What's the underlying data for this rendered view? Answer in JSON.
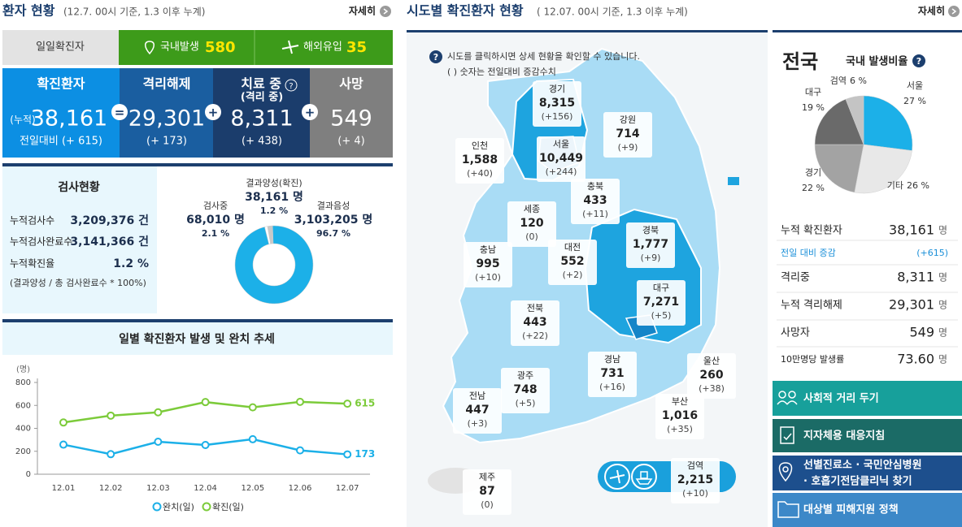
{
  "patients": {
    "title": "환자 현황",
    "subtitle": "(12.7. 00시 기준, 1.3 이후 누계)",
    "more": "자세히",
    "daily": {
      "label": "일일확진자",
      "domestic_label": "국내발생",
      "domestic": "580",
      "overseas_label": "해외유입",
      "overseas": "35"
    },
    "operators": [
      "=",
      "+",
      "+"
    ],
    "cards": [
      {
        "title": "확진환자",
        "prefix": "(누적)",
        "value": "38,161",
        "change": "전일대비 (+ 615)"
      },
      {
        "title": "격리해제",
        "value": "29,301",
        "change": "(+ 173)"
      },
      {
        "title": "치료 중",
        "help": "?",
        "subtitle": "(격리 중)",
        "value": "8,311",
        "change": "(+ 438)"
      },
      {
        "title": "사망",
        "value": "549",
        "change": "(+ 4)"
      }
    ]
  },
  "tests": {
    "title": "검사현황",
    "rows": [
      [
        "누적검사수",
        "3,209,376 건"
      ],
      [
        "누적검사완료수",
        "3,141,366 건"
      ],
      [
        "누적확진율",
        "1.2 %"
      ]
    ],
    "note": "(결과양성 / 총 검사완료수 * 100%)",
    "donut": {
      "type": "pie",
      "categories": [
        "결과양성(확진)",
        "검사중",
        "결과음성"
      ],
      "counts": [
        "38,161 명",
        "68,010 명",
        "3,103,205 명"
      ],
      "values": [
        1.2,
        2.1,
        96.7
      ],
      "value_labels": [
        "1.2 %",
        "2.1 %",
        "96.7 %"
      ],
      "colors": [
        "#ffffff",
        "#c9c9c9",
        "#1cb0e8"
      ]
    }
  },
  "trend": {
    "type": "line",
    "title": "일별 확진환자 발생 및 완치 추세",
    "y_unit": "(명)",
    "categories": [
      "12.01",
      "12.02",
      "12.03",
      "12.04",
      "12.05",
      "12.06",
      "12.07"
    ],
    "series": [
      {
        "name": "완치(일)",
        "color": "#1cb0e8",
        "values": [
          258,
          175,
          283,
          255,
          305,
          208,
          173
        ]
      },
      {
        "name": "확진(일)",
        "color": "#7ccb3a",
        "values": [
          451,
          511,
          540,
          629,
          583,
          631,
          615
        ]
      }
    ],
    "ylim": [
      0,
      800
    ],
    "yticks": [
      0,
      200,
      400,
      600,
      800
    ]
  },
  "map": {
    "title": "시도별 확진환자 현황",
    "subtitle": "( 12.07. 00시 기준, 1.3 이후 누계)",
    "more": "자세히",
    "help": "?",
    "notes": [
      "시도를 클릭하시면 상세 현황을 확인할 수 있습니다.",
      "( ) 숫자는 전일대비 증감수치"
    ],
    "regions": [
      {
        "name": "경기",
        "value": "8,315",
        "change": "(+156)"
      },
      {
        "name": "강원",
        "value": "714",
        "change": "(+9)"
      },
      {
        "name": "인천",
        "value": "1,588",
        "change": "(+40)"
      },
      {
        "name": "서울",
        "value": "10,449",
        "change": "(+244)"
      },
      {
        "name": "충북",
        "value": "433",
        "change": "(+11)"
      },
      {
        "name": "세종",
        "value": "120",
        "change": "(0)"
      },
      {
        "name": "충남",
        "value": "995",
        "change": "(+10)"
      },
      {
        "name": "대전",
        "value": "552",
        "change": "(+2)"
      },
      {
        "name": "경북",
        "value": "1,777",
        "change": "(+9)"
      },
      {
        "name": "대구",
        "value": "7,271",
        "change": "(+5)"
      },
      {
        "name": "전북",
        "value": "443",
        "change": "(+22)"
      },
      {
        "name": "경남",
        "value": "731",
        "change": "(+16)"
      },
      {
        "name": "광주",
        "value": "748",
        "change": "(+5)"
      },
      {
        "name": "울산",
        "value": "260",
        "change": "(+38)"
      },
      {
        "name": "전남",
        "value": "447",
        "change": "(+3)"
      },
      {
        "name": "부산",
        "value": "1,016",
        "change": "(+35)"
      },
      {
        "name": "검역",
        "value": "2,215",
        "change": "(+10)"
      },
      {
        "name": "제주",
        "value": "87",
        "change": "(0)"
      }
    ]
  },
  "nation": {
    "title": "전국",
    "ratio_title": "국내 발생비율",
    "help": "?",
    "pie": {
      "type": "pie",
      "categories": [
        "서울",
        "기타",
        "경기",
        "대구",
        "검역"
      ],
      "values": [
        27,
        26,
        22,
        19,
        6
      ],
      "value_labels": [
        "27 %",
        "26 %",
        "22 %",
        "19 %",
        "6 %"
      ],
      "colors": [
        "#1cb0e8",
        "#e8e8e8",
        "#a3a3a3",
        "#6a6a6a",
        "#c4c4c4"
      ]
    },
    "stats": [
      {
        "label": "누적 확진환자",
        "value": "38,161",
        "unit": "명"
      },
      {
        "label": "전일 대비 증감",
        "value": "(+615)"
      },
      {
        "label": "격리중",
        "value": "8,311",
        "unit": "명"
      },
      {
        "label": "누적 격리해제",
        "value": "29,301",
        "unit": "명"
      },
      {
        "label": "사망자",
        "value": "549",
        "unit": "명"
      },
      {
        "label": "10만명당 발생률",
        "value": "73.60",
        "unit": "명"
      }
    ]
  },
  "links": [
    {
      "lines": [
        "사회적 거리 두기"
      ]
    },
    {
      "lines": [
        "지자체용 대응지침"
      ]
    },
    {
      "lines": [
        "선별진료소 · 국민안심병원",
        "· 호흡기전담클리닉 찾기"
      ]
    },
    {
      "lines": [
        "대상별 피해지원 정책"
      ]
    }
  ]
}
